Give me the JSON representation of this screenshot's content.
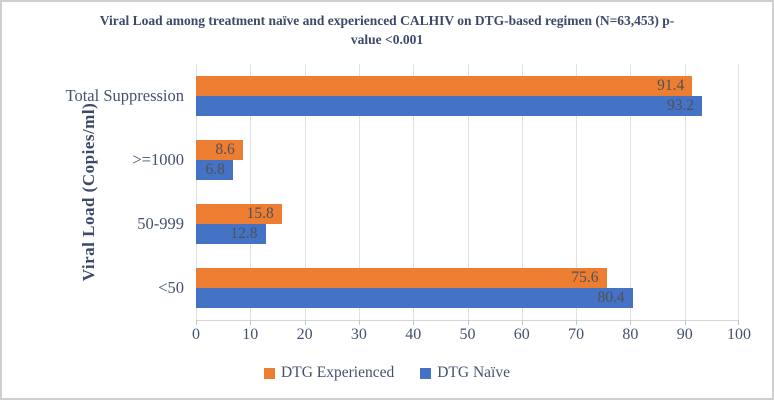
{
  "figure": {
    "title_lines": [
      "Viral Load among treatment naïve and experienced CALHIV on DTG-based regimen (N=63,453) p-",
      "value <0.001"
    ]
  },
  "chart_data": {
    "type": "bar",
    "orientation": "horizontal",
    "title": "Viral Load among treatment naïve and experienced CALHIV on DTG-based regimen (N=63,453) p-value <0.001",
    "ylabel": "Viral Load (Copies/ml)",
    "xlabel": "",
    "categories_top_to_bottom": [
      "Total Suppression",
      ">=1000",
      "50-999",
      "<50"
    ],
    "series": [
      {
        "name": "DTG Experienced",
        "color": "#ED7D31",
        "values": [
          91.4,
          8.6,
          15.8,
          75.6
        ]
      },
      {
        "name": "DTG Naïve",
        "color": "#4472C4",
        "values": [
          93.2,
          6.8,
          12.8,
          80.4
        ]
      }
    ],
    "xlim": [
      0,
      100
    ],
    "xticks": [
      0,
      10,
      20,
      30,
      40,
      50,
      60,
      70,
      80,
      90,
      100
    ],
    "grid": true,
    "legend_position": "bottom",
    "data_labels": "inside-end"
  },
  "colors": {
    "title_text": "#3c4a68",
    "axis_text": "#44526e",
    "data_label_text": "#4f5158",
    "gridline": "#dfe1e6",
    "figure_border": "#cfcfcf"
  }
}
